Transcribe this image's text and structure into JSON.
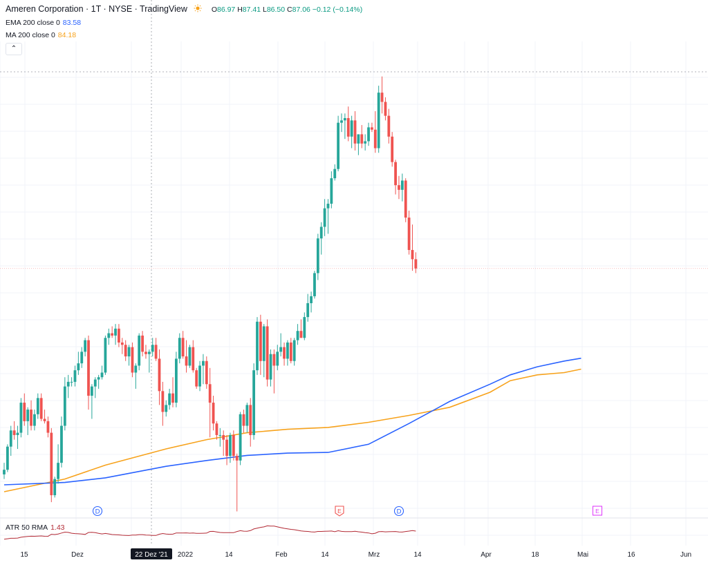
{
  "header": {
    "symbol": "Ameren Corporation · 1T · NYSE · TradingView",
    "ohlc": {
      "o_label": "O",
      "o": "86.97",
      "h_label": "H",
      "h": "87.41",
      "l_label": "L",
      "l": "86.50",
      "c_label": "C",
      "c": "87.06",
      "change": "−0.12 (−0.14%)"
    },
    "icon": "sun-icon"
  },
  "indicators": {
    "ema": {
      "label": "EMA 200 close 0",
      "value": "83.58",
      "color": "#2962ff"
    },
    "ma": {
      "label": "MA 200 close 0",
      "value": "84.18",
      "color": "#f7a21b"
    },
    "collapse_icon": "chevron-up-icon",
    "collapse_glyph": "⌃"
  },
  "atr": {
    "label": "ATR 50 RMA",
    "value": "1.43",
    "color": "#b22833"
  },
  "colors": {
    "up": "#26a69a",
    "down": "#ef5350",
    "grid": "#f0f3fa",
    "crosshair": "#9598a1"
  },
  "x_axis": {
    "labels": [
      "15",
      "Dez",
      "22 Dez '21",
      "2022",
      "14",
      "Feb",
      "14",
      "Mrz",
      "14",
      "Apr",
      "18",
      "Mai",
      "16",
      "Jun"
    ],
    "highlight": "22 Dez '21"
  },
  "events": [
    {
      "letter": "D",
      "kind": "dividend"
    },
    {
      "letter": "E",
      "kind": "earnings"
    },
    {
      "letter": "D",
      "kind": "dividend"
    },
    {
      "letter": "E",
      "kind": "earnings"
    }
  ],
  "chart_data": {
    "type": "candlestick",
    "title": "Ameren Corporation · 1T · NYSE · TradingView",
    "candles": [
      [
        80.7,
        81.2,
        80.5,
        80.9
      ],
      [
        80.9,
        82.0,
        80.8,
        81.9
      ],
      [
        81.9,
        82.8,
        81.5,
        82.6
      ],
      [
        82.6,
        83.0,
        82.2,
        82.4
      ],
      [
        82.4,
        82.8,
        81.8,
        82.5
      ],
      [
        82.5,
        84.0,
        82.3,
        83.8
      ],
      [
        83.8,
        84.2,
        82.8,
        83.0
      ],
      [
        83.0,
        83.6,
        82.4,
        83.5
      ],
      [
        83.5,
        83.9,
        82.6,
        82.8
      ],
      [
        82.8,
        83.5,
        82.6,
        83.3
      ],
      [
        83.3,
        84.2,
        83.1,
        84.0
      ],
      [
        84.0,
        84.2,
        83.0,
        83.1
      ],
      [
        83.1,
        83.5,
        82.9,
        83.0
      ],
      [
        83.0,
        83.2,
        82.3,
        82.5
      ],
      [
        82.5,
        82.7,
        79.5,
        79.8
      ],
      [
        79.8,
        80.6,
        79.7,
        80.5
      ],
      [
        80.5,
        82.0,
        80.3,
        81.2
      ],
      [
        81.2,
        83.2,
        81.0,
        82.8
      ],
      [
        82.8,
        84.9,
        82.6,
        84.5
      ],
      [
        84.5,
        85.0,
        84.0,
        84.7
      ],
      [
        84.7,
        84.9,
        84.5,
        84.7
      ],
      [
        84.7,
        85.4,
        84.5,
        85.2
      ],
      [
        85.2,
        86.0,
        85.0,
        85.5
      ],
      [
        85.5,
        86.2,
        85.3,
        86.0
      ],
      [
        86.0,
        86.6,
        85.8,
        86.5
      ],
      [
        86.5,
        86.7,
        83.5,
        84.1
      ],
      [
        84.1,
        84.6,
        83.1,
        84.5
      ],
      [
        84.5,
        84.9,
        84.0,
        84.8
      ],
      [
        84.8,
        85.0,
        84.4,
        84.9
      ],
      [
        84.9,
        85.4,
        84.8,
        85.1
      ],
      [
        85.1,
        86.7,
        85.0,
        86.6
      ],
      [
        86.6,
        87.0,
        86.3,
        86.8
      ],
      [
        86.8,
        87.1,
        86.6,
        86.7
      ],
      [
        86.7,
        87.2,
        86.3,
        87.0
      ],
      [
        87.0,
        87.2,
        86.2,
        86.4
      ],
      [
        86.4,
        86.6,
        85.9,
        86.3
      ],
      [
        86.3,
        86.5,
        85.6,
        85.8
      ],
      [
        85.8,
        86.3,
        85.4,
        86.2
      ],
      [
        86.2,
        86.4,
        84.9,
        85.1
      ],
      [
        85.1,
        85.5,
        84.4,
        85.4
      ],
      [
        85.4,
        86.8,
        85.2,
        86.7
      ],
      [
        86.7,
        86.9,
        85.8,
        86.0
      ],
      [
        86.0,
        86.3,
        85.7,
        85.9
      ],
      [
        85.9,
        86.1,
        85.1,
        86.0
      ],
      [
        86.0,
        86.6,
        85.8,
        86.3
      ],
      [
        86.3,
        86.6,
        85.6,
        85.7
      ],
      [
        85.7,
        86.1,
        83.7,
        84.3
      ],
      [
        84.3,
        84.7,
        82.8,
        83.4
      ],
      [
        83.4,
        83.9,
        83.2,
        83.7
      ],
      [
        83.7,
        84.4,
        83.5,
        84.2
      ],
      [
        84.2,
        84.9,
        83.6,
        83.8
      ],
      [
        83.8,
        86.0,
        83.6,
        85.7
      ],
      [
        85.7,
        86.8,
        85.5,
        86.6
      ],
      [
        86.6,
        86.9,
        85.7,
        85.8
      ],
      [
        85.8,
        86.5,
        85.1,
        85.4
      ],
      [
        85.4,
        86.3,
        85.3,
        86.2
      ],
      [
        86.2,
        86.5,
        85.1,
        85.2
      ],
      [
        85.2,
        85.3,
        84.4,
        84.5
      ],
      [
        84.5,
        85.6,
        84.3,
        85.4
      ],
      [
        85.4,
        85.9,
        84.6,
        85.6
      ],
      [
        85.6,
        85.8,
        84.4,
        84.6
      ],
      [
        84.6,
        85.3,
        82.3,
        83.8
      ],
      [
        83.8,
        84.1,
        82.6,
        82.9
      ],
      [
        82.9,
        83.0,
        82.2,
        82.4
      ],
      [
        82.4,
        82.7,
        81.9,
        82.4
      ],
      [
        82.4,
        82.6,
        81.5,
        82.2
      ],
      [
        82.2,
        82.4,
        81.1,
        81.5
      ],
      [
        81.5,
        82.5,
        81.2,
        82.4
      ],
      [
        82.4,
        82.6,
        81.3,
        81.5
      ],
      [
        81.5,
        81.6,
        79.1,
        81.3
      ],
      [
        81.3,
        83.4,
        81.1,
        83.3
      ],
      [
        83.3,
        83.5,
        82.5,
        82.8
      ],
      [
        82.8,
        83.8,
        82.5,
        83.7
      ],
      [
        83.7,
        84.0,
        81.9,
        82.4
      ],
      [
        82.4,
        85.5,
        82.2,
        85.2
      ],
      [
        85.2,
        87.5,
        85.0,
        87.3
      ],
      [
        87.3,
        87.6,
        85.0,
        85.6
      ],
      [
        85.6,
        87.2,
        84.9,
        87.1
      ],
      [
        87.1,
        87.4,
        84.5,
        84.8
      ],
      [
        84.8,
        86.1,
        84.5,
        85.9
      ],
      [
        85.9,
        86.1,
        84.2,
        85.4
      ],
      [
        85.4,
        86.3,
        85.2,
        86.0
      ],
      [
        86.0,
        86.8,
        85.8,
        86.2
      ],
      [
        86.2,
        86.4,
        85.4,
        85.7
      ],
      [
        85.7,
        86.5,
        85.4,
        86.4
      ],
      [
        86.4,
        86.6,
        85.5,
        85.6
      ],
      [
        85.6,
        86.6,
        85.4,
        86.5
      ],
      [
        86.5,
        87.2,
        86.3,
        86.9
      ],
      [
        86.9,
        87.4,
        86.6,
        86.6
      ],
      [
        86.6,
        87.7,
        86.5,
        87.5
      ],
      [
        87.5,
        88.5,
        87.3,
        88.1
      ],
      [
        88.1,
        88.6,
        87.7,
        88.4
      ],
      [
        88.4,
        89.5,
        88.3,
        89.4
      ],
      [
        89.4,
        91.1,
        89.1,
        90.9
      ],
      [
        90.9,
        91.6,
        90.2,
        91.4
      ],
      [
        91.4,
        92.6,
        91.0,
        92.2
      ],
      [
        92.2,
        92.6,
        91.1,
        92.4
      ],
      [
        92.4,
        93.8,
        92.2,
        93.5
      ],
      [
        93.5,
        94.1,
        93.4,
        93.9
      ],
      [
        93.9,
        96.2,
        93.8,
        95.9
      ],
      [
        95.9,
        96.3,
        95.5,
        96.0
      ],
      [
        96.0,
        96.3,
        95.2,
        96.1
      ],
      [
        96.1,
        96.6,
        95.1,
        95.3
      ],
      [
        95.3,
        96.2,
        94.8,
        96.0
      ],
      [
        96.0,
        96.4,
        94.7,
        95.0
      ],
      [
        95.0,
        95.4,
        94.5,
        95.4
      ],
      [
        95.4,
        95.8,
        94.8,
        95.0
      ],
      [
        95.0,
        95.4,
        94.7,
        95.1
      ],
      [
        95.1,
        95.9,
        94.9,
        95.7
      ],
      [
        95.7,
        95.9,
        95.5,
        95.6
      ],
      [
        95.6,
        96.4,
        94.6,
        94.8
      ],
      [
        94.8,
        97.5,
        94.6,
        97.2
      ],
      [
        97.2,
        97.9,
        96.3,
        96.8
      ],
      [
        96.8,
        97.0,
        96.0,
        96.2
      ],
      [
        96.2,
        96.5,
        95.0,
        95.3
      ],
      [
        95.3,
        95.5,
        94.0,
        94.2
      ],
      [
        94.2,
        94.3,
        92.8,
        93.2
      ],
      [
        93.2,
        93.6,
        92.6,
        93.0
      ],
      [
        93.0,
        93.7,
        92.5,
        93.4
      ],
      [
        93.4,
        93.5,
        91.6,
        91.8
      ],
      [
        91.8,
        92.1,
        90.2,
        90.4
      ],
      [
        90.4,
        91.5,
        89.5,
        90.0
      ],
      [
        90.0,
        90.3,
        89.4,
        89.6
      ]
    ],
    "ema200": [
      [
        0,
        80.25
      ],
      [
        18,
        80.35
      ],
      [
        30,
        80.55
      ],
      [
        48,
        81.05
      ],
      [
        60,
        81.3
      ],
      [
        72,
        81.52
      ],
      [
        84,
        81.62
      ],
      [
        96,
        81.65
      ],
      [
        108,
        82.0
      ],
      [
        120,
        82.9
      ],
      [
        132,
        83.85
      ],
      [
        144,
        84.6
      ],
      [
        150,
        85.0
      ],
      [
        158,
        85.35
      ],
      [
        166,
        85.6
      ],
      [
        171,
        85.72
      ]
    ],
    "ma200": [
      [
        0,
        79.95
      ],
      [
        18,
        80.5
      ],
      [
        30,
        81.1
      ],
      [
        48,
        81.8
      ],
      [
        60,
        82.2
      ],
      [
        72,
        82.5
      ],
      [
        84,
        82.65
      ],
      [
        96,
        82.73
      ],
      [
        108,
        82.95
      ],
      [
        120,
        83.25
      ],
      [
        132,
        83.6
      ],
      [
        144,
        84.25
      ],
      [
        150,
        84.75
      ],
      [
        158,
        85.0
      ],
      [
        166,
        85.1
      ],
      [
        171,
        85.25
      ]
    ],
    "atr_pane": {
      "label": "ATR 50 RMA",
      "last": 1.43
    },
    "legend": [
      "EMA 200 close 0",
      "MA 200 close 0"
    ]
  }
}
